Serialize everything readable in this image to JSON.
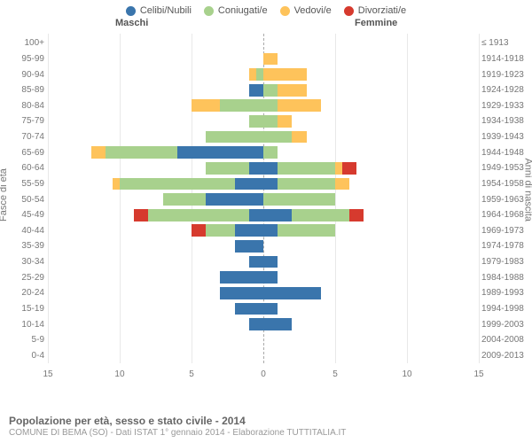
{
  "legend": [
    {
      "label": "Celibi/Nubili",
      "color": "#3a75ac"
    },
    {
      "label": "Coniugati/e",
      "color": "#a8d18d"
    },
    {
      "label": "Vedovi/e",
      "color": "#fec35b"
    },
    {
      "label": "Divorziati/e",
      "color": "#d63a2e"
    }
  ],
  "headers": {
    "male": "Maschi",
    "female": "Femmine"
  },
  "axis": {
    "left_label": "Fasce di età",
    "right_label": "Anni di nascita",
    "x_max": 15,
    "x_ticks": [
      15,
      10,
      5,
      0,
      5,
      10,
      15
    ]
  },
  "colors": {
    "grid": "#e8e8e8",
    "zero_line": "#aaaaaa",
    "background": "#ffffff",
    "tick_text": "#777777",
    "header_text": "#555555"
  },
  "age_bands": [
    {
      "age": "100+",
      "birth": "≤ 1913",
      "m": [
        0,
        0,
        0,
        0
      ],
      "f": [
        0,
        0,
        0,
        0
      ]
    },
    {
      "age": "95-99",
      "birth": "1914-1918",
      "m": [
        0,
        0,
        0,
        0
      ],
      "f": [
        0,
        0,
        1,
        0
      ]
    },
    {
      "age": "90-94",
      "birth": "1919-1923",
      "m": [
        0,
        0.5,
        0.5,
        0
      ],
      "f": [
        0,
        0,
        3,
        0
      ]
    },
    {
      "age": "85-89",
      "birth": "1924-1928",
      "m": [
        1,
        0,
        0,
        0
      ],
      "f": [
        0,
        1,
        2,
        0
      ]
    },
    {
      "age": "80-84",
      "birth": "1929-1933",
      "m": [
        0,
        3,
        2,
        0
      ],
      "f": [
        0,
        1,
        3,
        0
      ]
    },
    {
      "age": "75-79",
      "birth": "1934-1938",
      "m": [
        0,
        1,
        0,
        0
      ],
      "f": [
        0,
        1,
        1,
        0
      ]
    },
    {
      "age": "70-74",
      "birth": "1939-1943",
      "m": [
        0,
        4,
        0,
        0
      ],
      "f": [
        0,
        2,
        1,
        0
      ]
    },
    {
      "age": "65-69",
      "birth": "1944-1948",
      "m": [
        6,
        5,
        1,
        0
      ],
      "f": [
        0,
        1,
        0,
        0
      ]
    },
    {
      "age": "60-64",
      "birth": "1949-1953",
      "m": [
        1,
        3,
        0,
        0
      ],
      "f": [
        1,
        4,
        0.5,
        1
      ]
    },
    {
      "age": "55-59",
      "birth": "1954-1958",
      "m": [
        2,
        8,
        0.5,
        0
      ],
      "f": [
        1,
        4,
        1,
        0
      ]
    },
    {
      "age": "50-54",
      "birth": "1959-1963",
      "m": [
        4,
        3,
        0,
        0
      ],
      "f": [
        0,
        5,
        0,
        0
      ]
    },
    {
      "age": "45-49",
      "birth": "1964-1968",
      "m": [
        1,
        7,
        0,
        1
      ],
      "f": [
        2,
        4,
        0,
        1
      ]
    },
    {
      "age": "40-44",
      "birth": "1969-1973",
      "m": [
        2,
        2,
        0,
        1
      ],
      "f": [
        1,
        4,
        0,
        0
      ]
    },
    {
      "age": "35-39",
      "birth": "1974-1978",
      "m": [
        2,
        0,
        0,
        0
      ],
      "f": [
        0,
        0,
        0,
        0
      ]
    },
    {
      "age": "30-34",
      "birth": "1979-1983",
      "m": [
        1,
        0,
        0,
        0
      ],
      "f": [
        1,
        0,
        0,
        0
      ]
    },
    {
      "age": "25-29",
      "birth": "1984-1988",
      "m": [
        3,
        0,
        0,
        0
      ],
      "f": [
        1,
        0,
        0,
        0
      ]
    },
    {
      "age": "20-24",
      "birth": "1989-1993",
      "m": [
        3,
        0,
        0,
        0
      ],
      "f": [
        4,
        0,
        0,
        0
      ]
    },
    {
      "age": "15-19",
      "birth": "1994-1998",
      "m": [
        2,
        0,
        0,
        0
      ],
      "f": [
        1,
        0,
        0,
        0
      ]
    },
    {
      "age": "10-14",
      "birth": "1999-2003",
      "m": [
        1,
        0,
        0,
        0
      ],
      "f": [
        2,
        0,
        0,
        0
      ]
    },
    {
      "age": "5-9",
      "birth": "2004-2008",
      "m": [
        0,
        0,
        0,
        0
      ],
      "f": [
        0,
        0,
        0,
        0
      ]
    },
    {
      "age": "0-4",
      "birth": "2009-2013",
      "m": [
        0,
        0,
        0,
        0
      ],
      "f": [
        0,
        0,
        0,
        0
      ]
    }
  ],
  "footer": {
    "title": "Popolazione per età, sesso e stato civile - 2014",
    "subtitle": "COMUNE DI BEMA (SO) - Dati ISTAT 1° gennaio 2014 - Elaborazione TUTTITALIA.IT"
  }
}
